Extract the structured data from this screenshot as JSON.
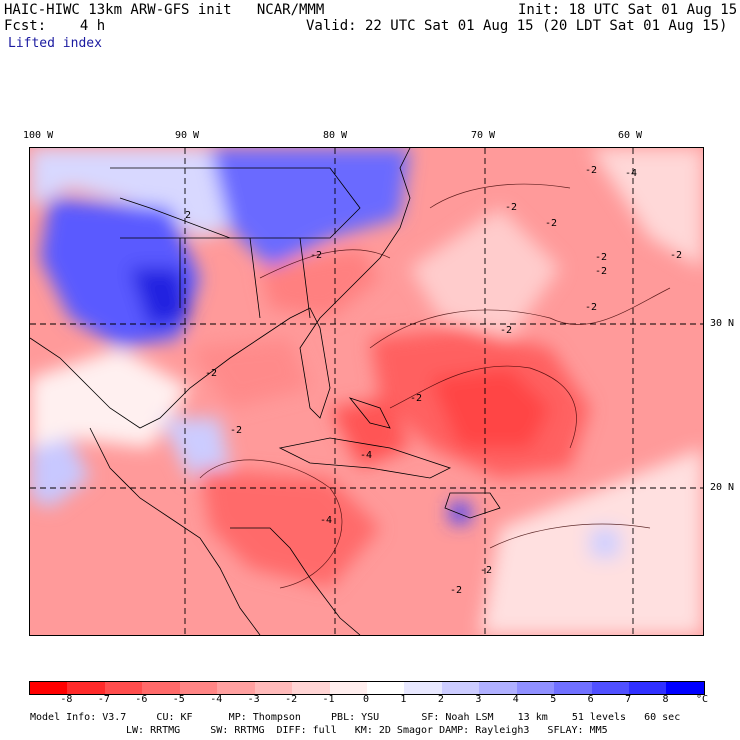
{
  "header": {
    "title": "HAIC-HIWC 13km ARW-GFS init   NCAR/MMM",
    "init": "Init: 18 UTC Sat 01 Aug 15",
    "fcst": "Fcst:    4 h",
    "valid": "Valid: 22 UTC Sat 01 Aug 15 (20 LDT Sat 01 Aug 15)",
    "field": "Lifted index"
  },
  "axes": {
    "longitude_labels": [
      "100 W",
      "90 W",
      "80 W",
      "70 W",
      "60 W"
    ],
    "latitude_labels": [
      "30 N",
      "20 N"
    ]
  },
  "contour_labels": [
    "2",
    "-2",
    "-2",
    "-2",
    "-2",
    "-2",
    "-4",
    "-2",
    "-2",
    "-2",
    "-4",
    "-2",
    "-2",
    "-2",
    "-2",
    "-4",
    "-2",
    "-2"
  ],
  "colorbar": {
    "ticks": [
      "-8",
      "-7",
      "-6",
      "-5",
      "-4",
      "-3",
      "-2",
      "-1",
      "0",
      "1",
      "2",
      "3",
      "4",
      "5",
      "6",
      "7",
      "8"
    ],
    "unit": "°C",
    "colors": [
      "#ff0000",
      "#ff2a2a",
      "#ff4d4d",
      "#ff6a6a",
      "#ff8585",
      "#ffa0a0",
      "#ffbaba",
      "#ffd4d4",
      "#ffeeee",
      "#ffffff",
      "#e8e8ff",
      "#ccccff",
      "#b0b0ff",
      "#9090ff",
      "#7070ff",
      "#5050ff",
      "#3030ff",
      "#0000ff"
    ]
  },
  "model_info": {
    "line1": "Model Info: V3.7     CU: KF      MP: Thompson     PBL: YSU       SF: Noah LSM    13 km    51 levels   60 sec",
    "line2": "LW: RRTMG     SW: RRTMG  DIFF: full   KM: 2D Smagor DAMP: Rayleigh3   SFLAY: MM5"
  }
}
